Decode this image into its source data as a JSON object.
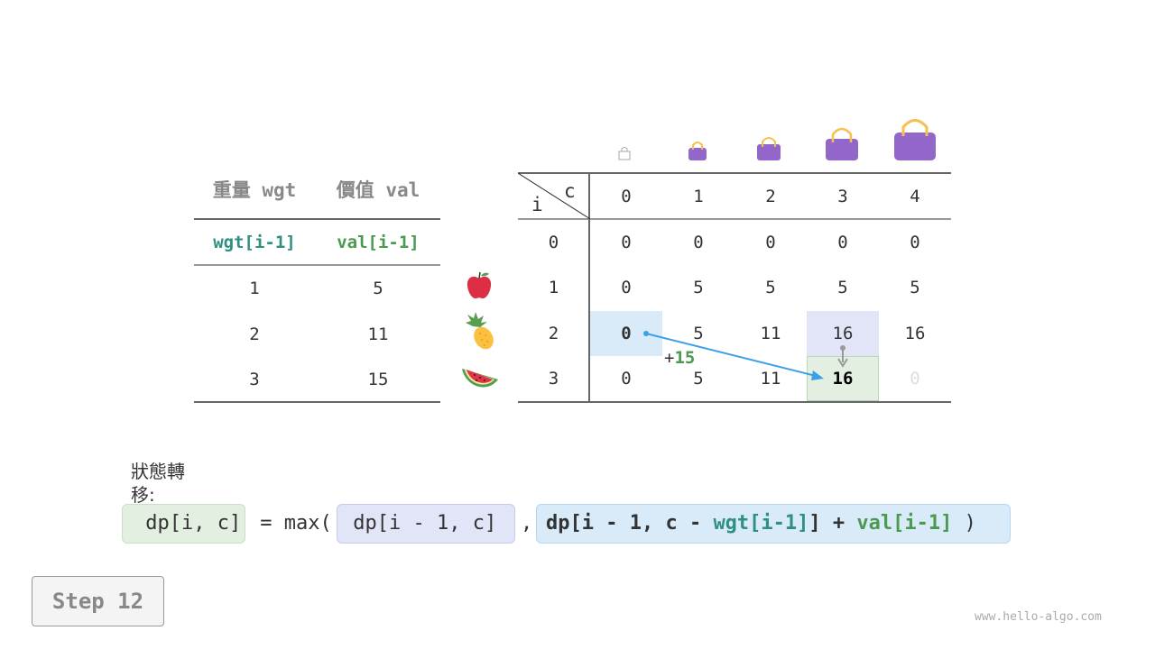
{
  "items_table": {
    "headers": [
      "重量 wgt",
      "價值 val"
    ],
    "subheaders": [
      "wgt[i-1]",
      "val[i-1]"
    ],
    "rows": [
      [
        "1",
        "5"
      ],
      [
        "2",
        "11"
      ],
      [
        "3",
        "15"
      ]
    ],
    "items": [
      "apple-icon",
      "pineapple-icon",
      "watermelon-icon"
    ]
  },
  "dp_table": {
    "corner_row_label": "i",
    "corner_col_label": "c",
    "col_headers": [
      "0",
      "1",
      "2",
      "3",
      "4"
    ],
    "capacity_icons": [
      "bag-empty-icon",
      "bag-1-icon",
      "bag-2-icon",
      "bag-3-icon",
      "bag-4-icon"
    ],
    "row_headers": [
      "0",
      "1",
      "2",
      "3"
    ],
    "rows": [
      [
        "0",
        "0",
        "0",
        "0",
        "0"
      ],
      [
        "0",
        "5",
        "5",
        "5",
        "5"
      ],
      [
        "0",
        "5",
        "11",
        "16",
        "16"
      ],
      [
        "0",
        "5",
        "11",
        "16",
        "0"
      ]
    ],
    "add_label": "+",
    "add_value": "15"
  },
  "formula": {
    "label": "狀態轉移:",
    "lhs": " dp[i, c]",
    "eq": " = max(",
    "opt1": " dp[i - 1, c]",
    "comma": ",",
    "opt2_a": "dp[i - 1, c - ",
    "opt2_wgt": "wgt[i-1]",
    "opt2_b": "] + ",
    "opt2_val": "val[i-1]",
    "close": " )"
  },
  "step_button": "Step 12",
  "watermark": "www.hello-algo.com",
  "colors": {
    "teal": "#2f8f82",
    "green": "#4a9a4f",
    "blue_hl": "#d9ebf9",
    "purple_hl": "#e2e5f7",
    "green_hl": "#e3f0e1",
    "bag": "#9366c9",
    "arrow": "#3aa0e8"
  }
}
